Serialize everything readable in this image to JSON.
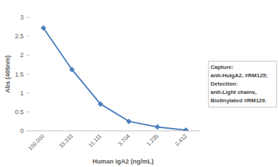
{
  "chart_data": {
    "type": "line",
    "x_label": "Human IgA2 (ng/mL)",
    "y_label": "Abs (405nm)",
    "categories": [
      "100.000",
      "33.333",
      "11.111",
      "3.704",
      "1.235",
      "0.412"
    ],
    "values": [
      2.72,
      1.62,
      0.71,
      0.25,
      0.1,
      0.02
    ],
    "color": "#4a7ebb",
    "marker": "diamond",
    "ylim": [
      0,
      3
    ],
    "yticks": [
      0,
      0.5,
      1,
      1.5,
      2,
      2.5,
      3
    ],
    "grid": false,
    "annotation": [
      "Capture:",
      "anti-HuIgA2, #RM125;",
      "Detection:",
      "anti-Light chains,",
      "Biotinylated #RM129."
    ]
  }
}
